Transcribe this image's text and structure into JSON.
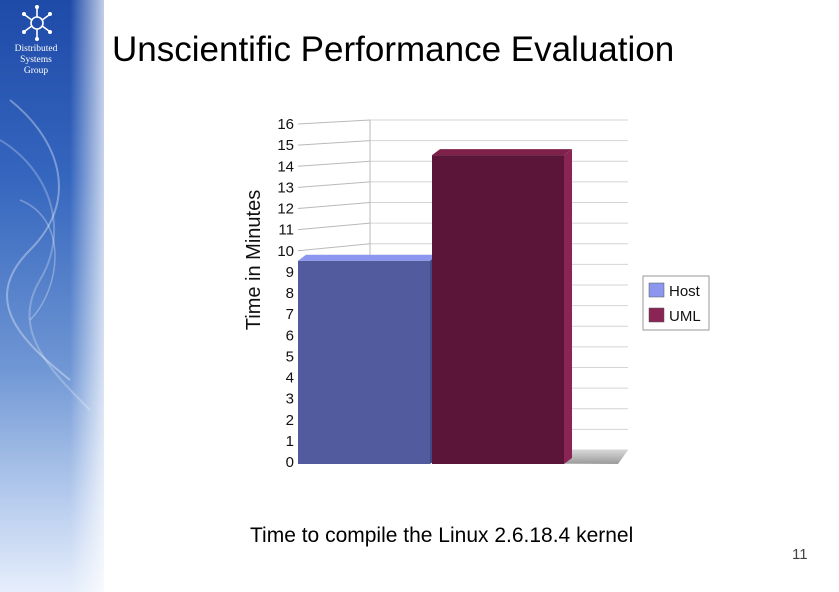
{
  "slide": {
    "group_name": "Distributed\nSystems\nGroup",
    "title": "Unscientific Performance Evaluation",
    "caption": "Time to compile the Linux 2.6.18.4 kernel",
    "page_number": "11"
  },
  "chart_data": {
    "type": "bar",
    "categories": [
      "Host",
      "UML"
    ],
    "values": [
      10,
      15
    ],
    "colors": [
      "#5c64b8",
      "#7a1e4c"
    ],
    "ylabel": "Time in Minutes",
    "ylim": [
      0,
      16
    ],
    "yticks": [
      "0",
      "1",
      "2",
      "3",
      "4",
      "5",
      "6",
      "7",
      "8",
      "9",
      "10",
      "11",
      "12",
      "13",
      "14",
      "15",
      "16"
    ],
    "legend": {
      "position": "right",
      "entries": [
        "Host",
        "UML"
      ]
    },
    "grid": true
  }
}
